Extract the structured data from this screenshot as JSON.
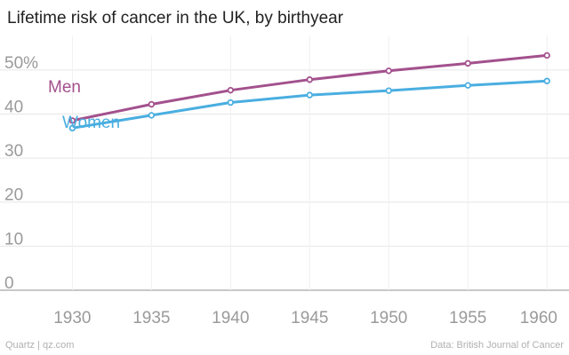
{
  "chart_data": {
    "type": "line",
    "title": "Lifetime risk of cancer in the UK, by birthyear",
    "xlabel": "",
    "ylabel": "",
    "x": [
      1930,
      1935,
      1940,
      1945,
      1950,
      1955,
      1960
    ],
    "xlim": [
      1927,
      1961
    ],
    "ylim": [
      0,
      55
    ],
    "x_ticks": [
      "1930",
      "1935",
      "1940",
      "1945",
      "1950",
      "1955",
      "1960"
    ],
    "y_ticks": [
      "0",
      "10",
      "20",
      "30",
      "40",
      "50%"
    ],
    "y_tick_values": [
      0,
      10,
      20,
      30,
      40,
      50
    ],
    "grid": true,
    "series": [
      {
        "name": "Men",
        "color": "#a3518d",
        "values": [
          38.5,
          42.2,
          45.4,
          47.8,
          49.8,
          51.5,
          53.3
        ]
      },
      {
        "name": "Women",
        "color": "#4aaee0",
        "values": [
          36.8,
          39.7,
          42.6,
          44.3,
          45.3,
          46.5,
          47.5
        ]
      }
    ]
  },
  "footer": {
    "source_left": "Quartz | qz.com",
    "source_right": "Data: British Journal of Cancer"
  }
}
